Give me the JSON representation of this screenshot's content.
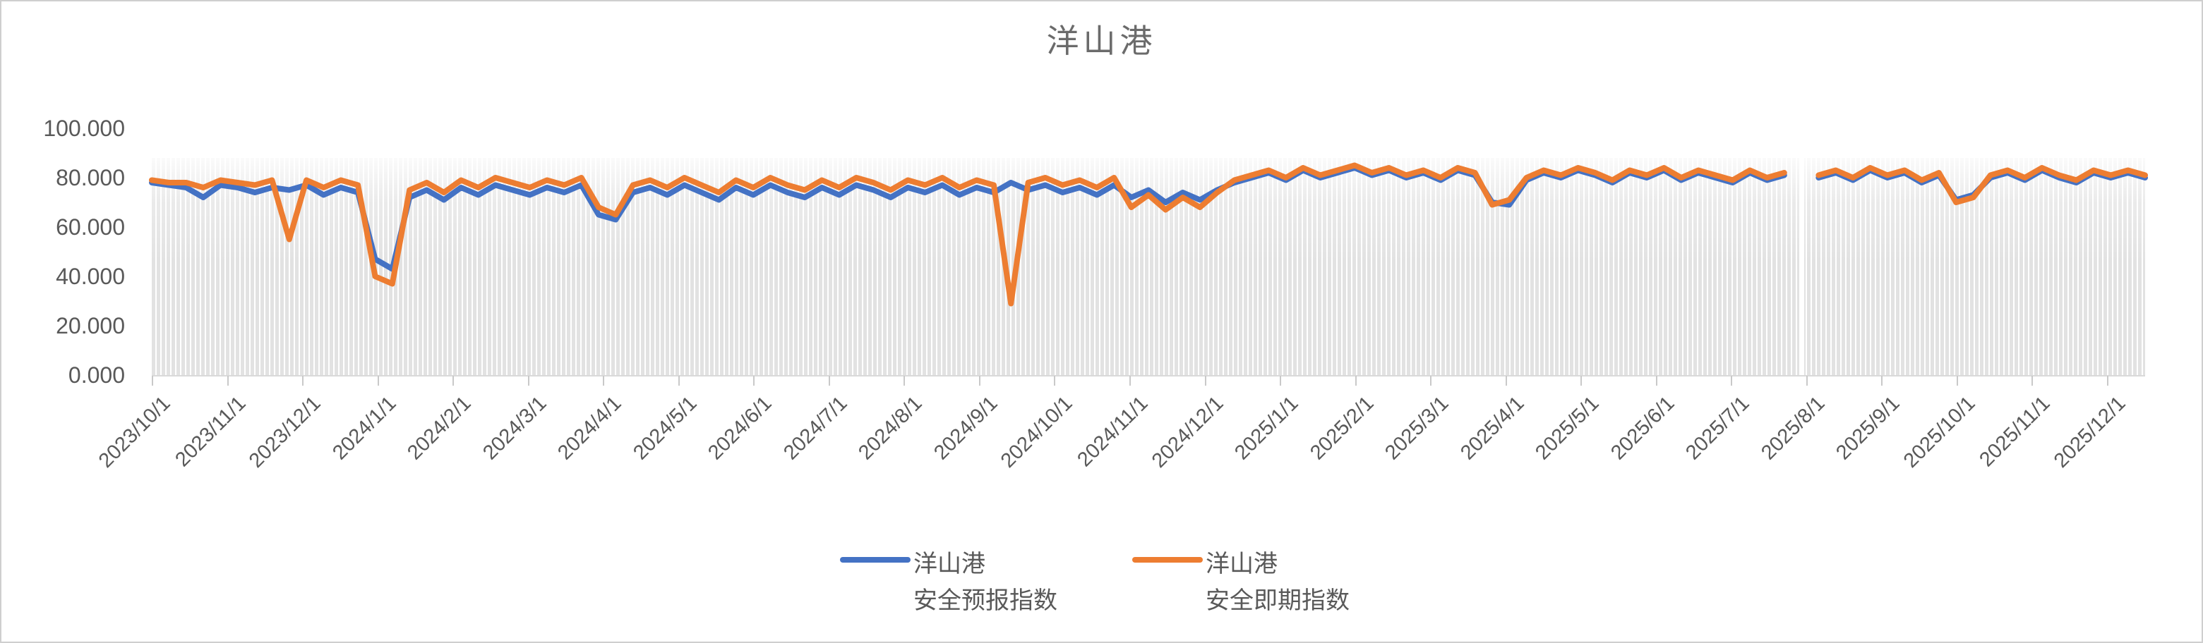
{
  "title": "洋山港",
  "colors": {
    "series_forecast": "#4472C4",
    "series_spot": "#ED7D31",
    "text": "#595959",
    "axis_line": "#D9D9D9",
    "tick_mark": "#C9C9C9",
    "background_bar_fill": "#E2E2E2"
  },
  "legend": {
    "items": [
      {
        "line1": "洋山港",
        "line2": "安全预报指数",
        "color": "#4472C4"
      },
      {
        "line1": "洋山港",
        "line2": "安全即期指数",
        "color": "#ED7D31"
      }
    ]
  },
  "chart_data": {
    "type": "line",
    "title": "洋山港",
    "xlabel": "",
    "ylabel": "",
    "ylim": [
      0,
      100
    ],
    "grid": false,
    "legend_position": "bottom",
    "x_range": [
      "2023/10/1",
      "2025/12/20"
    ],
    "sampling": "approx weekly samples read from daily chart",
    "y_tick_labels": [
      "100.000",
      "80.000",
      "60.000",
      "40.000",
      "20.000",
      "0.000"
    ],
    "x_tick_labels": [
      "2023/10/1",
      "2023/11/1",
      "2023/12/1",
      "2024/1/1",
      "2024/2/1",
      "2024/3/1",
      "2024/4/1",
      "2024/5/1",
      "2024/6/1",
      "2024/7/1",
      "2024/8/1",
      "2024/9/1",
      "2024/10/1",
      "2024/11/1",
      "2024/12/1",
      "2025/1/1",
      "2025/2/1",
      "2025/3/1",
      "2025/4/1",
      "2025/5/1",
      "2025/6/1",
      "2025/7/1",
      "2025/8/1",
      "2025/9/1",
      "2025/10/1",
      "2025/11/1",
      "2025/12/1"
    ],
    "background_bars": {
      "note": "pale gray vertical daily bars behind the lines",
      "top_value": 88,
      "fill": "#E2E2E2"
    },
    "annotations": [
      {
        "date": "2023/11/25",
        "text": "spot index dips to ~55"
      },
      {
        "date": "2023/12/28",
        "text": "both indices dip: forecast ~47, spot ~40"
      },
      {
        "date": "2024/1/10",
        "text": "both indices dip: forecast ~43, spot ~37"
      },
      {
        "date": "2024/4/5",
        "text": "both indices dip to ~63-65"
      },
      {
        "date": "2024/9/15",
        "text": "spot index spikes down to ~29"
      },
      {
        "date": "2025/4/1",
        "text": "both indices dip to ~69-70"
      },
      {
        "date": "2025/8/1",
        "text": "missing-data gap (white strip, lines break)"
      },
      {
        "date": "2025/10/15",
        "text": "both indices dip to ~70-71"
      }
    ],
    "series": [
      {
        "name": "洋山港安全预报指数",
        "color": "#4472C4",
        "values": [
          78,
          77,
          76,
          72,
          77,
          76,
          74,
          76,
          75,
          77,
          73,
          76,
          74,
          47,
          43,
          72,
          75,
          71,
          76,
          73,
          77,
          75,
          73,
          76,
          74,
          77,
          65,
          63,
          74,
          76,
          73,
          77,
          74,
          71,
          76,
          73,
          77,
          74,
          72,
          76,
          73,
          77,
          75,
          72,
          76,
          74,
          77,
          73,
          76,
          74,
          78,
          75,
          77,
          74,
          76,
          73,
          77,
          72,
          75,
          70,
          74,
          71,
          75,
          78,
          80,
          82,
          79,
          83,
          80,
          82,
          84,
          81,
          83,
          80,
          82,
          79,
          83,
          81,
          70,
          69,
          79,
          82,
          80,
          83,
          81,
          78,
          82,
          80,
          83,
          79,
          82,
          80,
          78,
          82,
          79,
          81,
          null,
          80,
          82,
          79,
          83,
          80,
          82,
          78,
          81,
          71,
          73,
          80,
          82,
          79,
          83,
          80,
          78,
          82,
          80,
          82,
          80
        ]
      },
      {
        "name": "洋山港安全即期指数",
        "color": "#ED7D31",
        "values": [
          79,
          78,
          78,
          76,
          79,
          78,
          77,
          79,
          55,
          79,
          76,
          79,
          77,
          40,
          37,
          75,
          78,
          74,
          79,
          76,
          80,
          78,
          76,
          79,
          77,
          80,
          68,
          65,
          77,
          79,
          76,
          80,
          77,
          74,
          79,
          76,
          80,
          77,
          75,
          79,
          76,
          80,
          78,
          75,
          79,
          77,
          80,
          76,
          79,
          77,
          29,
          78,
          80,
          77,
          79,
          76,
          80,
          68,
          73,
          67,
          72,
          68,
          74,
          79,
          81,
          83,
          80,
          84,
          81,
          83,
          85,
          82,
          84,
          81,
          83,
          80,
          84,
          82,
          69,
          71,
          80,
          83,
          81,
          84,
          82,
          79,
          83,
          81,
          84,
          80,
          83,
          81,
          79,
          83,
          80,
          82,
          null,
          81,
          83,
          80,
          84,
          81,
          83,
          79,
          82,
          70,
          72,
          81,
          83,
          80,
          84,
          81,
          79,
          83,
          81,
          83,
          81
        ]
      }
    ]
  }
}
